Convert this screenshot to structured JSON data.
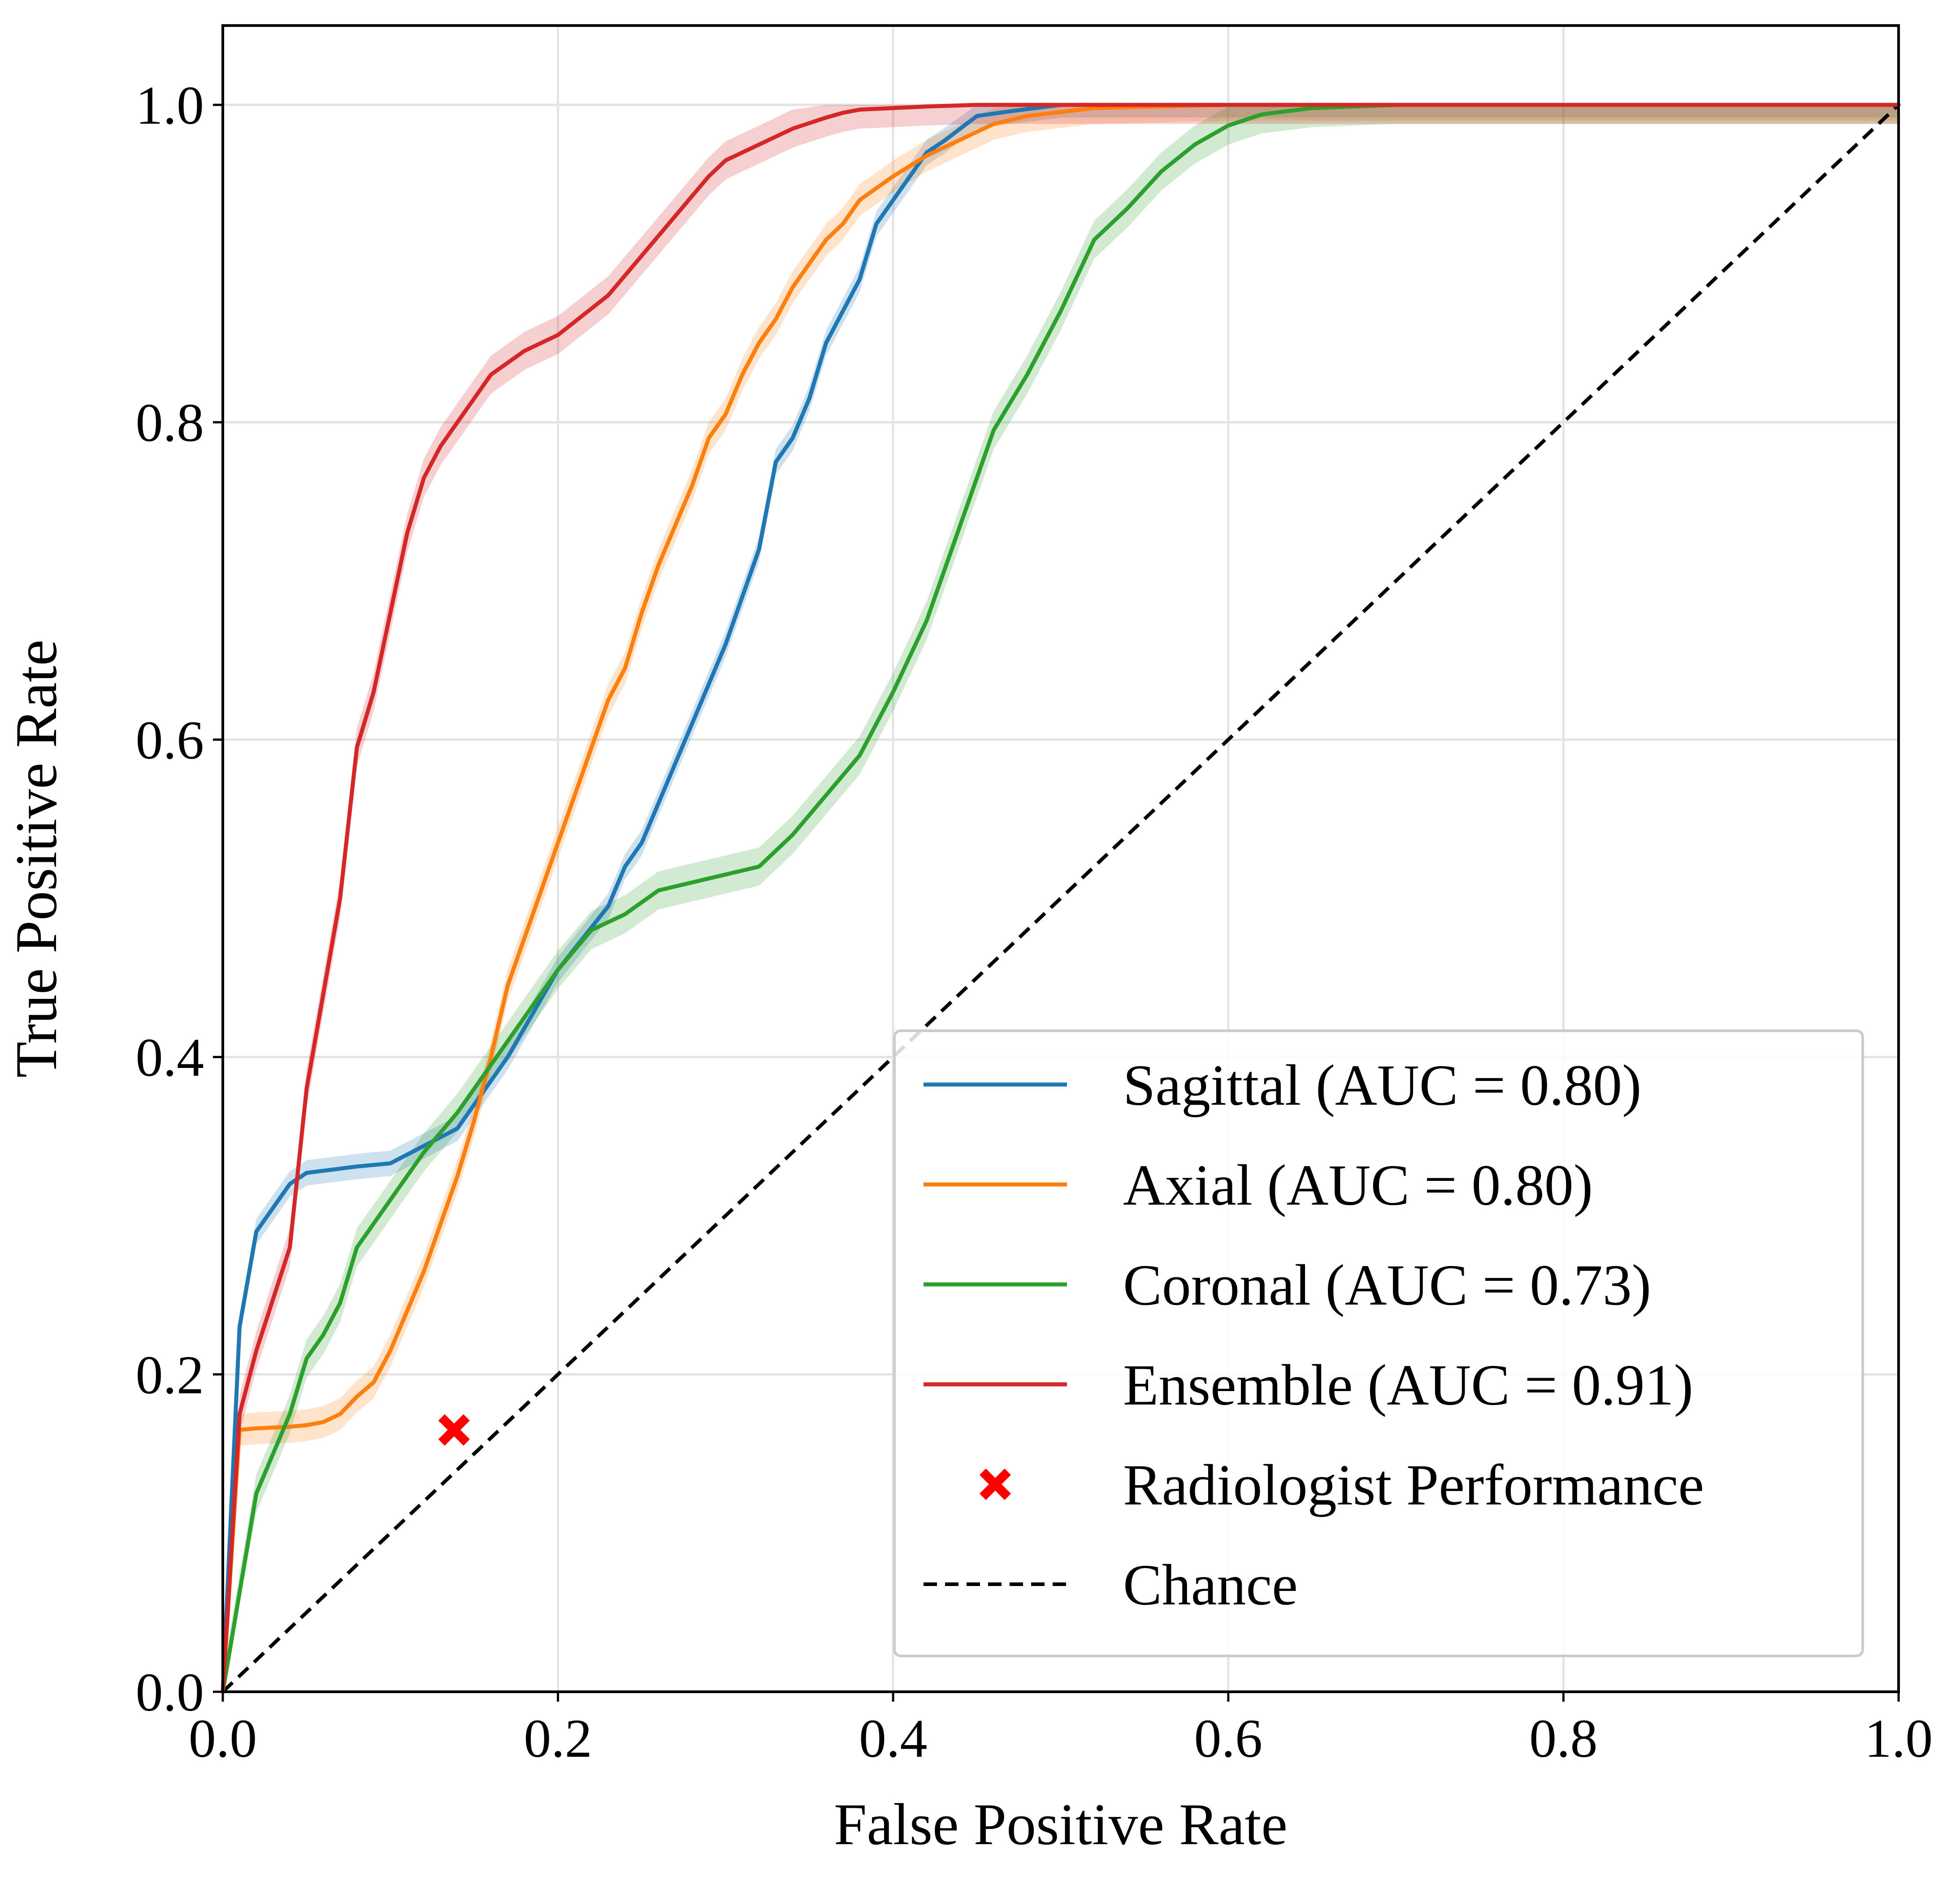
{
  "chart_data": {
    "type": "line",
    "title": "",
    "xlabel": "False Positive Rate",
    "ylabel": "True Positive Rate",
    "xlim": [
      0.0,
      1.0
    ],
    "ylim": [
      0.0,
      1.05
    ],
    "xticks": [
      "0.0",
      "0.2",
      "0.4",
      "0.6",
      "0.8",
      "1.0"
    ],
    "yticks": [
      "0.0",
      "0.2",
      "0.4",
      "0.6",
      "0.8",
      "1.0"
    ],
    "grid": true,
    "legend_position": "lower-right",
    "series": [
      {
        "name": "Sagittal (AUC = 0.80)",
        "color": "#1f77b4",
        "band": 0.008,
        "x": [
          0.0,
          0.01,
          0.02,
          0.04,
          0.05,
          0.08,
          0.1,
          0.14,
          0.17,
          0.2,
          0.23,
          0.24,
          0.25,
          0.26,
          0.27,
          0.28,
          0.3,
          0.32,
          0.33,
          0.34,
          0.35,
          0.36,
          0.38,
          0.39,
          0.42,
          0.43,
          0.45,
          0.47,
          0.5,
          0.55,
          0.6,
          0.7,
          0.8,
          0.9,
          1.0
        ],
        "y": [
          0.0,
          0.23,
          0.29,
          0.32,
          0.327,
          0.331,
          0.333,
          0.355,
          0.4,
          0.455,
          0.495,
          0.52,
          0.535,
          0.56,
          0.585,
          0.61,
          0.66,
          0.72,
          0.775,
          0.79,
          0.815,
          0.85,
          0.89,
          0.925,
          0.97,
          0.977,
          0.993,
          0.996,
          1.0,
          1.0,
          1.0,
          1.0,
          1.0,
          1.0,
          1.0
        ]
      },
      {
        "name": "Axial (AUC = 0.80)",
        "color": "#ff7f0e",
        "band": 0.01,
        "x": [
          0.0,
          0.01,
          0.02,
          0.04,
          0.05,
          0.06,
          0.07,
          0.08,
          0.09,
          0.1,
          0.11,
          0.12,
          0.13,
          0.14,
          0.15,
          0.16,
          0.17,
          0.18,
          0.19,
          0.2,
          0.21,
          0.22,
          0.23,
          0.24,
          0.25,
          0.26,
          0.27,
          0.28,
          0.29,
          0.3,
          0.31,
          0.32,
          0.33,
          0.34,
          0.35,
          0.36,
          0.37,
          0.38,
          0.4,
          0.42,
          0.44,
          0.46,
          0.48,
          0.52,
          0.6,
          0.7,
          0.8,
          0.9,
          1.0
        ],
        "y": [
          0.0,
          0.165,
          0.166,
          0.167,
          0.168,
          0.17,
          0.175,
          0.186,
          0.195,
          0.215,
          0.24,
          0.265,
          0.295,
          0.325,
          0.36,
          0.4,
          0.445,
          0.475,
          0.505,
          0.535,
          0.565,
          0.595,
          0.625,
          0.645,
          0.68,
          0.71,
          0.735,
          0.76,
          0.79,
          0.805,
          0.83,
          0.85,
          0.865,
          0.885,
          0.9,
          0.915,
          0.925,
          0.94,
          0.955,
          0.968,
          0.978,
          0.988,
          0.993,
          0.998,
          1.0,
          1.0,
          1.0,
          1.0,
          1.0
        ]
      },
      {
        "name": "Coronal (AUC = 0.73)",
        "color": "#2ca02c",
        "band": 0.012,
        "x": [
          0.0,
          0.02,
          0.04,
          0.05,
          0.06,
          0.07,
          0.08,
          0.1,
          0.12,
          0.14,
          0.16,
          0.18,
          0.2,
          0.22,
          0.24,
          0.26,
          0.28,
          0.3,
          0.32,
          0.34,
          0.36,
          0.38,
          0.4,
          0.42,
          0.44,
          0.46,
          0.48,
          0.5,
          0.52,
          0.54,
          0.56,
          0.58,
          0.6,
          0.62,
          0.65,
          0.7,
          0.8,
          0.9,
          1.0
        ],
        "y": [
          0.0,
          0.125,
          0.175,
          0.21,
          0.225,
          0.245,
          0.28,
          0.31,
          0.34,
          0.365,
          0.395,
          0.425,
          0.455,
          0.48,
          0.49,
          0.505,
          0.51,
          0.515,
          0.52,
          0.54,
          0.565,
          0.59,
          0.63,
          0.675,
          0.735,
          0.795,
          0.83,
          0.87,
          0.915,
          0.935,
          0.958,
          0.975,
          0.987,
          0.994,
          0.998,
          1.0,
          1.0,
          1.0,
          1.0
        ]
      },
      {
        "name": "Ensemble (AUC = 0.91)",
        "color": "#d62728",
        "band": 0.012,
        "x": [
          0.0,
          0.01,
          0.02,
          0.04,
          0.05,
          0.06,
          0.07,
          0.08,
          0.09,
          0.1,
          0.11,
          0.12,
          0.13,
          0.14,
          0.16,
          0.18,
          0.2,
          0.23,
          0.25,
          0.27,
          0.29,
          0.3,
          0.32,
          0.34,
          0.36,
          0.37,
          0.38,
          0.4,
          0.42,
          0.45,
          0.5,
          0.6,
          0.7,
          0.8,
          0.9,
          1.0
        ],
        "y": [
          0.0,
          0.175,
          0.215,
          0.28,
          0.38,
          0.44,
          0.5,
          0.595,
          0.63,
          0.68,
          0.73,
          0.765,
          0.785,
          0.8,
          0.83,
          0.845,
          0.855,
          0.88,
          0.905,
          0.93,
          0.955,
          0.965,
          0.975,
          0.985,
          0.992,
          0.995,
          0.997,
          0.998,
          0.999,
          1.0,
          1.0,
          1.0,
          1.0,
          1.0,
          1.0,
          1.0
        ]
      }
    ],
    "markers": [
      {
        "name": "Radiologist Performance",
        "x": 0.138,
        "y": 0.165,
        "color": "#ff0000",
        "shape": "X"
      }
    ],
    "reference_line": {
      "name": "Chance",
      "x": [
        0.0,
        1.0
      ],
      "y": [
        0.0,
        1.0
      ],
      "color": "#000000",
      "style": "dashed"
    }
  }
}
